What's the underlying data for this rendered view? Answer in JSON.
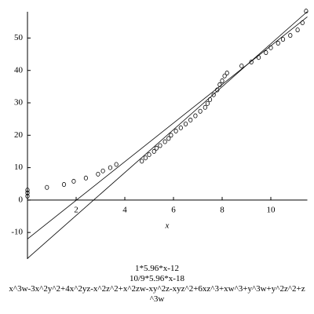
{
  "chart_data": {
    "type": "scatter",
    "x_label": "x",
    "xlim": [
      0,
      11.5
    ],
    "ylim": [
      -18.2,
      58.1
    ],
    "xticks": [
      2,
      4,
      6,
      8,
      10
    ],
    "yticks": [
      -10,
      0,
      10,
      20,
      30,
      40,
      50
    ],
    "series": [
      {
        "name": "1*5.96*x-12",
        "type": "line",
        "color": "#000000",
        "x": [
          0,
          11.5
        ],
        "values": [
          -12,
          56.54
        ]
      },
      {
        "name": "10/9*5.96*x-18",
        "type": "line",
        "color": "#000000",
        "x": [
          0,
          11.5
        ],
        "values": [
          -18,
          58.16
        ]
      },
      {
        "name": "x^3w-3x^2y^2+4x^2yz-x^2z^2+x^2zw-xy^2z-xyz^2+6xz^3+xw^3+y^3w+y^2z^2+z^3w",
        "type": "scatter",
        "color": "#000000",
        "x": [
          0,
          0,
          0,
          0.8,
          1.5,
          1.9,
          2.4,
          2.9,
          3.1,
          3.4,
          3.65,
          4.7,
          4.85,
          5,
          5.2,
          5.3,
          5.45,
          5.65,
          5.8,
          5.9,
          6.1,
          6.3,
          6.5,
          6.7,
          6.9,
          7.1,
          7.3,
          7.4,
          7.5,
          7.65,
          7.8,
          7.9,
          8,
          8.1,
          8.2,
          8.8,
          9.2,
          9.5,
          9.8,
          10,
          10.3,
          10.5,
          10.8,
          11.1,
          11.3,
          11.45
        ],
        "values": [
          1.2,
          2.2,
          3.1,
          3.9,
          4.8,
          5.8,
          6.8,
          8,
          9,
          10,
          11,
          12,
          13,
          14,
          15,
          16,
          16.8,
          18,
          19,
          20,
          21.3,
          22.3,
          23.5,
          24.7,
          26,
          27.4,
          28.6,
          29.8,
          31,
          32.5,
          34,
          35.6,
          36.8,
          38.3,
          39.2,
          41.4,
          42.6,
          44,
          45.5,
          47,
          48.4,
          49.6,
          50.8,
          52.5,
          54.7,
          58.3
        ]
      }
    ]
  }
}
